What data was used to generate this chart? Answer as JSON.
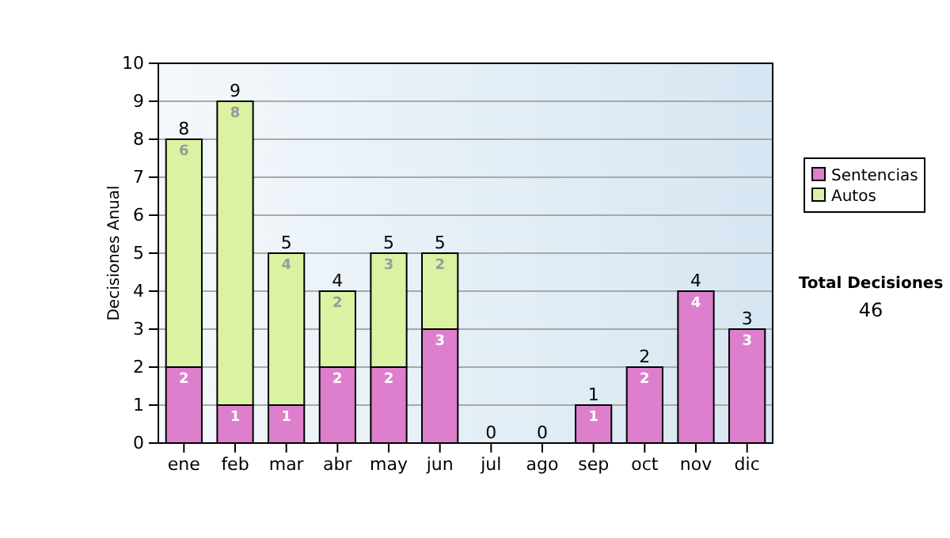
{
  "chart_data": {
    "type": "bar",
    "stacked": true,
    "ylabel": "Decisiones Anual",
    "categories": [
      "ene",
      "feb",
      "mar",
      "abr",
      "may",
      "jun",
      "jul",
      "ago",
      "sep",
      "oct",
      "nov",
      "dic"
    ],
    "series": [
      {
        "name": "Sentencias",
        "color": "#dd7fcc",
        "values": [
          2,
          1,
          1,
          2,
          2,
          3,
          0,
          0,
          1,
          2,
          4,
          3
        ],
        "value_labels": [
          "2",
          "1",
          "1",
          "2",
          "2",
          "3",
          null,
          null,
          "1",
          "2",
          "4",
          "3"
        ]
      },
      {
        "name": "Autos",
        "color": "#daf2a2",
        "values": [
          6,
          8,
          4,
          2,
          3,
          2,
          0,
          0,
          0,
          0,
          0,
          0
        ],
        "value_labels": [
          "6",
          "8",
          "4",
          "2",
          "3",
          "2",
          null,
          null,
          null,
          null,
          null,
          null
        ]
      }
    ],
    "totals": [
      "8",
      "9",
      "5",
      "4",
      "5",
      "5",
      "0",
      "0",
      "1",
      "2",
      "4",
      "3"
    ],
    "ylim": [
      0,
      10
    ],
    "yticks": [
      0,
      1,
      2,
      3,
      4,
      5,
      6,
      7,
      8,
      9,
      10
    ],
    "grid": "y",
    "legend": "right",
    "annotations": [
      "Total Decisiones",
      "46"
    ]
  }
}
